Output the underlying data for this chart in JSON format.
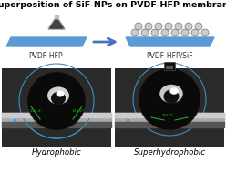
{
  "title": "Superposition of SiF-NPs on PVDF-HFP membrane",
  "title_fontsize": 6.8,
  "label_left": "PVDF-HFP",
  "label_right": "PVDF-HFP/SiF",
  "bottom_left": "Hydrophobic",
  "bottom_right": "Superhydrophobic",
  "bg_color": "#ffffff",
  "membrane_color": "#5b9bd5",
  "arrow_color": "#4472c4",
  "np_fill": "#cccccc",
  "np_edge": "#777777",
  "photo_bg": "#1c1c1c",
  "surface_color": "#888888",
  "surface_dark": "#555555",
  "drop_dark": "#0a0a0a",
  "drop_ring": "#222222",
  "highlight_color": "#ffffff",
  "blue_ring": "#3a8fc0",
  "green_line": "#22aa22",
  "contact_angle_left_1": "134.4°",
  "contact_angle_left_2": "135.2°",
  "contact_angle_right": "165.2°",
  "text_color_label": "#333333"
}
